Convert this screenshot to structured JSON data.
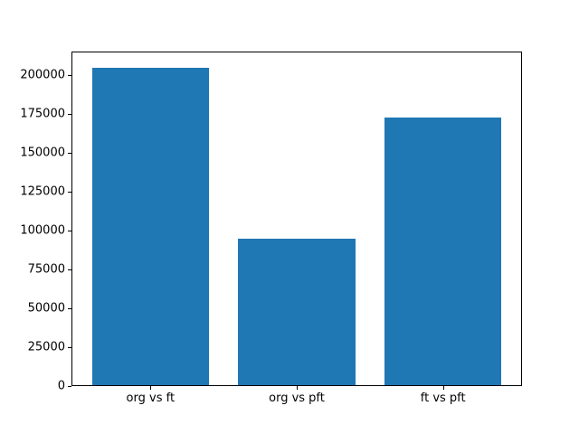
{
  "chart_data": {
    "type": "bar",
    "title": "",
    "xlabel": "",
    "ylabel": "",
    "categories": [
      "org vs ft",
      "org vs pft",
      "ft vs pft"
    ],
    "values": [
      204600,
      94800,
      172400
    ],
    "ytick_values": [
      0,
      25000,
      50000,
      75000,
      100000,
      125000,
      150000,
      175000,
      200000
    ],
    "ytick_labels": [
      "0",
      "25000",
      "50000",
      "75000",
      "100000",
      "125000",
      "150000",
      "175000",
      "200000"
    ],
    "ylim": [
      0,
      214800
    ],
    "xlim_units": [
      -0.54,
      2.54
    ],
    "bar_width_units": 0.8,
    "bar_color": "#1f77b4",
    "axis_color": "#000000",
    "background_color": "#ffffff",
    "grid": false,
    "legend": null
  }
}
